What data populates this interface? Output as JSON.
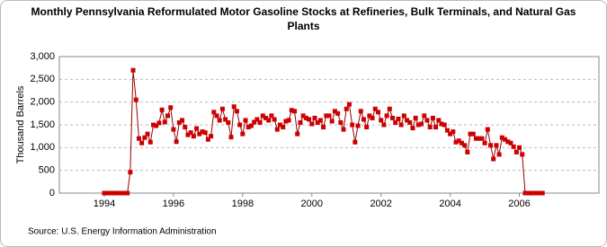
{
  "chart_data": {
    "type": "line",
    "title": "Monthly Pennsylvania Reformulated Motor Gasoline Stocks at Refineries, Bulk Terminals, and Natural Gas Plants",
    "y_label": "Thousand Barrels",
    "source": "Source: U.S. Energy Information Administration",
    "xlim": [
      1992.7,
      2008.3
    ],
    "xticks": [
      1994,
      1996,
      1998,
      2000,
      2002,
      2004,
      2006
    ],
    "ylim": [
      0,
      3000
    ],
    "yticks": [
      0,
      500,
      {
        "value": 1000,
        "label": "1,000"
      },
      {
        "value": 1500,
        "label": "1,500"
      },
      {
        "value": 2000,
        "label": "2,000"
      },
      {
        "value": 2500,
        "label": "2,500"
      },
      {
        "value": 3000,
        "label": "3,000"
      }
    ],
    "grid": true,
    "series": [
      {
        "color": "#990000",
        "marker_color": "#cc0000",
        "x": [
          1994,
          1994.083,
          1994.167,
          1994.25,
          1994.333,
          1994.417,
          1994.5,
          1994.583,
          1994.667,
          1994.75,
          1994.833,
          1994.917,
          1995,
          1995.083,
          1995.167,
          1995.25,
          1995.333,
          1995.417,
          1995.5,
          1995.583,
          1995.667,
          1995.75,
          1995.833,
          1995.917,
          1996,
          1996.083,
          1996.167,
          1996.25,
          1996.333,
          1996.417,
          1996.5,
          1996.583,
          1996.667,
          1996.75,
          1996.833,
          1996.917,
          1997,
          1997.083,
          1997.167,
          1997.25,
          1997.333,
          1997.417,
          1997.5,
          1997.583,
          1997.667,
          1997.75,
          1997.833,
          1997.917,
          1998,
          1998.083,
          1998.167,
          1998.25,
          1998.333,
          1998.417,
          1998.5,
          1998.583,
          1998.667,
          1998.75,
          1998.833,
          1998.917,
          1999,
          1999.083,
          1999.167,
          1999.25,
          1999.333,
          1999.417,
          1999.5,
          1999.583,
          1999.667,
          1999.75,
          1999.833,
          1999.917,
          2000,
          2000.083,
          2000.167,
          2000.25,
          2000.333,
          2000.417,
          2000.5,
          2000.583,
          2000.667,
          2000.75,
          2000.833,
          2000.917,
          2001,
          2001.083,
          2001.167,
          2001.25,
          2001.333,
          2001.417,
          2001.5,
          2001.583,
          2001.667,
          2001.75,
          2001.833,
          2001.917,
          2002,
          2002.083,
          2002.167,
          2002.25,
          2002.333,
          2002.417,
          2002.5,
          2002.583,
          2002.667,
          2002.75,
          2002.833,
          2002.917,
          2003,
          2003.083,
          2003.167,
          2003.25,
          2003.333,
          2003.417,
          2003.5,
          2003.583,
          2003.667,
          2003.75,
          2003.833,
          2003.917,
          2004,
          2004.083,
          2004.167,
          2004.25,
          2004.333,
          2004.417,
          2004.5,
          2004.583,
          2004.667,
          2004.75,
          2004.833,
          2004.917,
          2005,
          2005.083,
          2005.167,
          2005.25,
          2005.333,
          2005.417,
          2005.5,
          2005.583,
          2005.667,
          2005.75,
          2005.833,
          2005.917,
          2006,
          2006.083,
          2006.167,
          2006.25,
          2006.333,
          2006.417,
          2006.5,
          2006.583,
          2006.667
        ],
        "values": [
          0,
          0,
          0,
          0,
          0,
          0,
          0,
          0,
          0,
          460,
          2700,
          2050,
          1200,
          1100,
          1220,
          1300,
          1120,
          1500,
          1480,
          1540,
          1830,
          1560,
          1700,
          1880,
          1400,
          1130,
          1550,
          1600,
          1450,
          1280,
          1330,
          1250,
          1420,
          1300,
          1350,
          1330,
          1180,
          1250,
          1780,
          1700,
          1600,
          1850,
          1620,
          1550,
          1230,
          1900,
          1800,
          1500,
          1300,
          1600,
          1450,
          1480,
          1560,
          1620,
          1550,
          1700,
          1650,
          1600,
          1700,
          1620,
          1400,
          1500,
          1450,
          1580,
          1600,
          1820,
          1800,
          1300,
          1550,
          1700,
          1650,
          1620,
          1520,
          1650,
          1550,
          1600,
          1450,
          1700,
          1700,
          1580,
          1800,
          1750,
          1550,
          1400,
          1850,
          1950,
          1500,
          1120,
          1480,
          1800,
          1620,
          1450,
          1700,
          1650,
          1850,
          1780,
          1600,
          1500,
          1700,
          1850,
          1650,
          1550,
          1630,
          1500,
          1700,
          1600,
          1550,
          1430,
          1650,
          1500,
          1520,
          1700,
          1600,
          1450,
          1650,
          1450,
          1600,
          1520,
          1500,
          1380,
          1300,
          1350,
          1120,
          1150,
          1100,
          1050,
          900,
          1300,
          1300,
          1200,
          1200,
          1200,
          1100,
          1400,
          1050,
          750,
          1050,
          850,
          1220,
          1180,
          1130,
          1100,
          1020,
          900,
          1000,
          850,
          0,
          0,
          0,
          0,
          0,
          0,
          0
        ]
      }
    ]
  }
}
